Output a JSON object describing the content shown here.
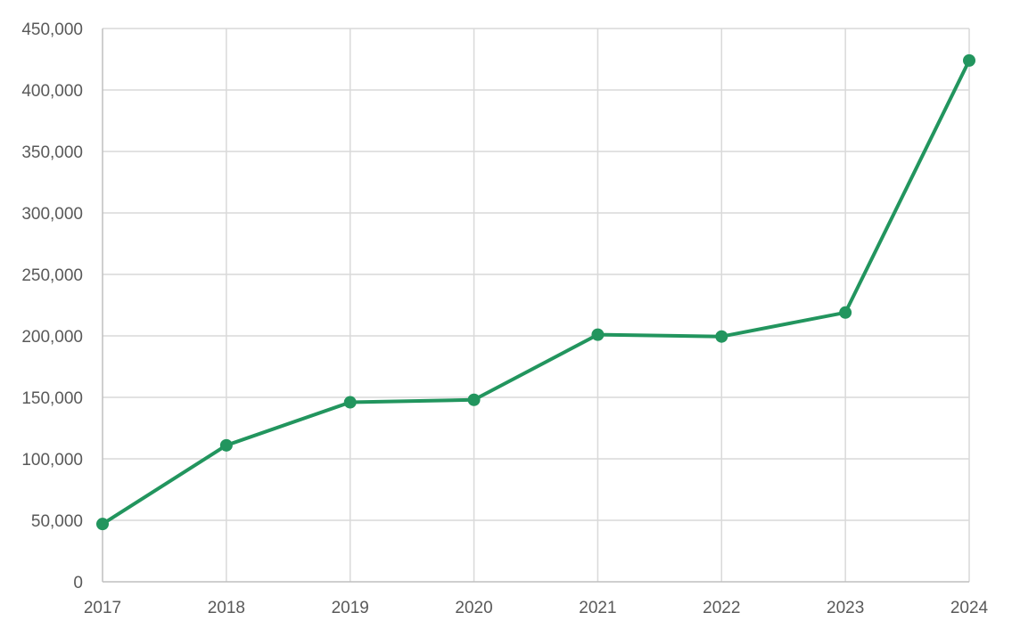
{
  "chart_data": {
    "type": "line",
    "title": "",
    "xlabel": "",
    "ylabel": "",
    "categories": [
      "2017",
      "2018",
      "2019",
      "2020",
      "2021",
      "2022",
      "2023",
      "2024"
    ],
    "series": [
      {
        "values": [
          47000,
          111000,
          146000,
          148000,
          201000,
          199500,
          219000,
          424000
        ],
        "color": "#22955e"
      }
    ],
    "ylim": [
      0,
      450000
    ],
    "yticks": [
      0,
      50000,
      100000,
      150000,
      200000,
      250000,
      300000,
      350000,
      400000,
      450000
    ],
    "ytick_labels": [
      "0",
      "50,000",
      "100,000",
      "150,000",
      "200,000",
      "250,000",
      "300,000",
      "350,000",
      "400,000",
      "450,000"
    ],
    "grid": true,
    "legend": "none",
    "markers": true
  }
}
